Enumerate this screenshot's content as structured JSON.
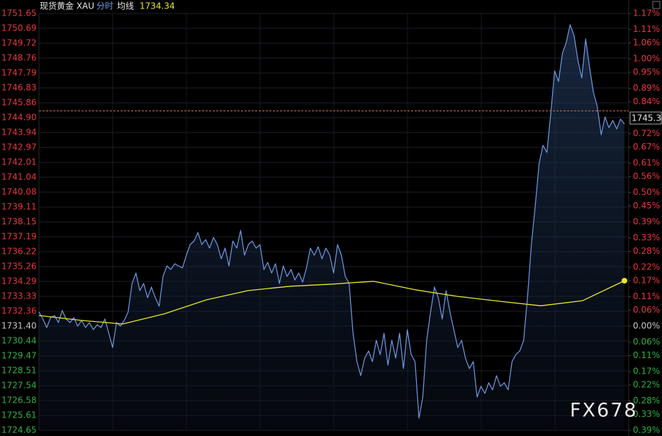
{
  "chart_data": {
    "type": "line",
    "title": "现货黄金 XAU",
    "watermark": "FX678",
    "last_price": 1745.34,
    "ylim": [
      1724.65,
      1751.65
    ],
    "yticks": [
      1751.65,
      1750.69,
      1749.72,
      1748.76,
      1747.79,
      1746.83,
      1745.86,
      {
        "value": 1744.9,
        "label": "1744.90"
      },
      1743.94,
      1742.97,
      1742.01,
      1741.04,
      1740.08,
      1739.11,
      1738.15,
      1737.19,
      1736.22,
      1735.26,
      1734.29,
      1733.33,
      1732.36,
      {
        "value": 1731.4,
        "label": "1731.40"
      },
      1730.44,
      1729.47,
      1728.51,
      1727.54,
      1726.58,
      1725.61,
      1724.65
    ],
    "y2lim": [
      -0.39,
      1.17
    ],
    "y2ticks": [
      {
        "value": 1.17,
        "label": "1.17%"
      },
      {
        "value": 1.11,
        "label": "1.11%"
      },
      {
        "value": 1.06,
        "label": "1.06%"
      },
      {
        "value": 1.0,
        "label": "1.00%"
      },
      {
        "value": 0.95,
        "label": "0.95%"
      },
      {
        "value": 0.89,
        "label": "0.89%"
      },
      {
        "value": 0.84,
        "label": "0.84%"
      },
      {
        "value": 0.72,
        "label": "0.72%"
      },
      {
        "value": 0.67,
        "label": "0.67%"
      },
      {
        "value": 0.61,
        "label": "0.61%"
      },
      {
        "value": 0.56,
        "label": "0.56%"
      },
      {
        "value": 0.5,
        "label": "0.50%"
      },
      {
        "value": 0.45,
        "label": "0.45%"
      },
      {
        "value": 0.39,
        "label": "0.39%"
      },
      {
        "value": 0.33,
        "label": "0.33%"
      },
      {
        "value": 0.28,
        "label": "0.28%"
      },
      {
        "value": 0.22,
        "label": "0.22%"
      },
      {
        "value": 0.17,
        "label": "0.17%"
      },
      {
        "value": 0.11,
        "label": "0.11%"
      },
      {
        "value": 0.06,
        "label": "0.06%"
      },
      {
        "value": 0.0,
        "label": "0.00%"
      },
      {
        "value": -0.06,
        "label": "0.06%"
      },
      {
        "value": -0.11,
        "label": "0.11%"
      },
      {
        "value": -0.17,
        "label": "0.17%"
      },
      {
        "value": -0.22,
        "label": "0.22%"
      },
      {
        "value": -0.28,
        "label": "0.28%"
      },
      {
        "value": -0.33,
        "label": "0.33%"
      },
      {
        "value": -0.39,
        "label": "0.39%"
      }
    ],
    "grid": true,
    "series": [
      {
        "name": "分时",
        "color": "#6f9be8",
        "values": [
          1732.32,
          1731.86,
          1731.31,
          1731.95,
          1732.09,
          1731.63,
          1732.41,
          1731.86,
          1731.63,
          1731.95,
          1731.4,
          1731.77,
          1731.31,
          1731.63,
          1731.17,
          1731.49,
          1731.31,
          1731.86,
          1730.94,
          1730.02,
          1731.63,
          1731.4,
          1731.77,
          1732.32,
          1734.16,
          1734.84,
          1733.7,
          1734.16,
          1733.24,
          1733.93,
          1733.24,
          1732.69,
          1734.62,
          1735.3,
          1735.07,
          1735.44,
          1735.3,
          1735.17,
          1735.99,
          1736.68,
          1736.91,
          1737.46,
          1736.68,
          1737.0,
          1736.45,
          1737.14,
          1736.68,
          1735.76,
          1736.45,
          1735.3,
          1736.91,
          1736.45,
          1737.6,
          1735.99,
          1736.68,
          1736.91,
          1736.45,
          1736.68,
          1735.07,
          1735.53,
          1734.84,
          1735.44,
          1734.16,
          1735.3,
          1734.62,
          1735.07,
          1734.39,
          1734.84,
          1734.25,
          1735.17,
          1736.45,
          1735.99,
          1736.54,
          1735.76,
          1736.45,
          1735.99,
          1734.84,
          1736.68,
          1735.99,
          1734.62,
          1734.16,
          1730.94,
          1729.1,
          1728.19,
          1729.33,
          1729.79,
          1729.1,
          1730.48,
          1729.56,
          1730.94,
          1728.87,
          1730.48,
          1729.33,
          1730.94,
          1728.65,
          1731.17,
          1729.56,
          1729.1,
          1725.43,
          1726.81,
          1730.48,
          1732.32,
          1733.93,
          1733.24,
          1731.86,
          1733.7,
          1732.32,
          1731.17,
          1730.02,
          1730.48,
          1729.33,
          1728.65,
          1729.1,
          1726.81,
          1727.5,
          1727.04,
          1727.73,
          1727.27,
          1728.19,
          1727.5,
          1727.73,
          1727.27,
          1729.1,
          1729.56,
          1729.79,
          1730.48,
          1733.24,
          1736.68,
          1739.21,
          1741.96,
          1743.11,
          1742.65,
          1745.18,
          1747.93,
          1747.24,
          1749.08,
          1749.77,
          1750.92,
          1750.23,
          1748.62,
          1747.47,
          1750.0,
          1748.16,
          1746.55,
          1745.63,
          1743.8,
          1744.95,
          1744.26,
          1744.72,
          1744.17,
          1744.81,
          1744.49
        ]
      },
      {
        "name": "均线",
        "color": "#e8e82e",
        "values": [
          1732.09,
          1731.77,
          1731.54,
          1732.2,
          1733.1,
          1733.7,
          1733.98,
          1734.12,
          1734.3,
          1733.75,
          1733.33,
          1733.01,
          1732.72,
          1733.05,
          1734.34
        ]
      }
    ]
  }
}
